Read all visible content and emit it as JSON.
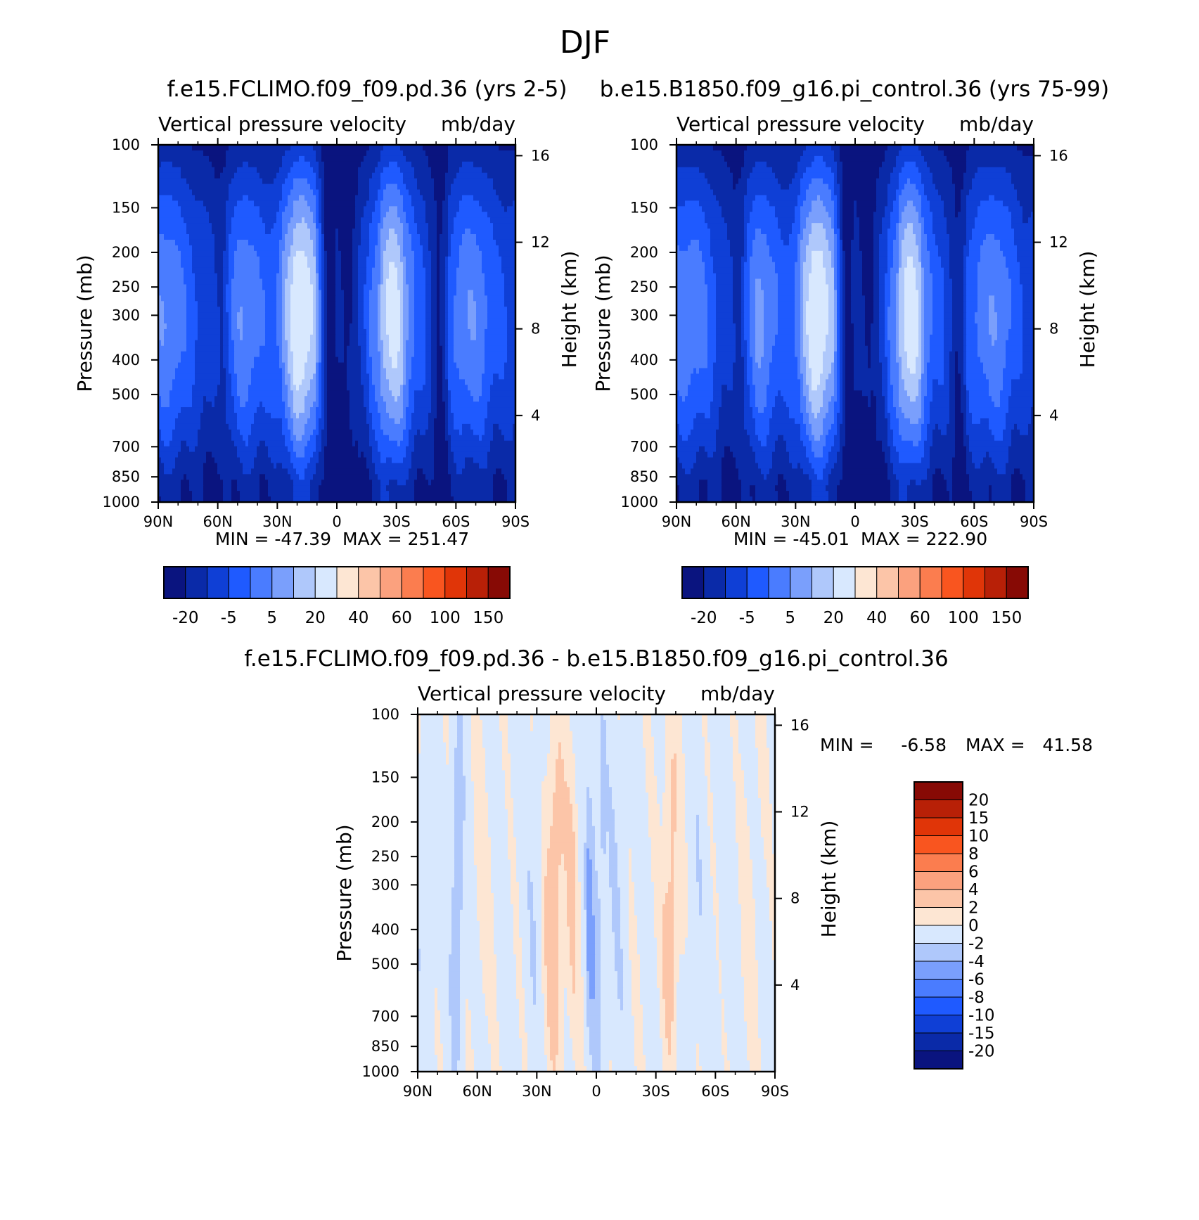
{
  "figure": {
    "title": "DJF"
  },
  "chart_data": [
    {
      "type": "heatmap",
      "title": "f.e15.FCLIMO.f09_f09.pd.36 (yrs 2-5)",
      "subtitle_left": "Vertical pressure velocity",
      "subtitle_right": "mb/day",
      "ylabel": "Pressure (mb)",
      "y2label": "Height (km)",
      "xticks": [
        "90N",
        "60N",
        "30N",
        "0",
        "30S",
        "60S",
        "90S"
      ],
      "xtick_values": [
        90,
        60,
        30,
        0,
        -30,
        -60,
        -90
      ],
      "xlim": [
        90,
        -90
      ],
      "yticks": [
        "100",
        "150",
        "200",
        "250",
        "300",
        "400",
        "500",
        "700",
        "850",
        "1000"
      ],
      "ytick_values": [
        100,
        150,
        200,
        250,
        300,
        400,
        500,
        700,
        850,
        1000
      ],
      "ylim": [
        1000,
        100
      ],
      "yscale": "log",
      "y2ticks": [
        "16",
        "12",
        "8",
        "4"
      ],
      "y2tick_values": [
        16,
        12,
        8,
        4
      ],
      "min_label": "MIN = -47.39",
      "max_label": "MAX = 251.47",
      "min": -47.39,
      "max": 251.47,
      "colorbar_labels": [
        "-20",
        "-5",
        "5",
        "20",
        "40",
        "60",
        "100",
        "150"
      ],
      "colorbar_orientation": "horizontal"
    },
    {
      "type": "heatmap",
      "title": "b.e15.B1850.f09_g16.pi_control.36 (yrs 75-99)",
      "subtitle_left": "Vertical pressure velocity",
      "subtitle_right": "mb/day",
      "ylabel": "Pressure (mb)",
      "y2label": "Height (km)",
      "xticks": [
        "90N",
        "60N",
        "30N",
        "0",
        "30S",
        "60S",
        "90S"
      ],
      "xtick_values": [
        90,
        60,
        30,
        0,
        -30,
        -60,
        -90
      ],
      "xlim": [
        90,
        -90
      ],
      "yticks": [
        "100",
        "150",
        "200",
        "250",
        "300",
        "400",
        "500",
        "700",
        "850",
        "1000"
      ],
      "ytick_values": [
        100,
        150,
        200,
        250,
        300,
        400,
        500,
        700,
        850,
        1000
      ],
      "ylim": [
        1000,
        100
      ],
      "yscale": "log",
      "y2ticks": [
        "16",
        "12",
        "8",
        "4"
      ],
      "y2tick_values": [
        16,
        12,
        8,
        4
      ],
      "min_label": "MIN = -45.01",
      "max_label": "MAX = 222.90",
      "min": -45.01,
      "max": 222.9,
      "colorbar_labels": [
        "-20",
        "-5",
        "5",
        "20",
        "40",
        "60",
        "100",
        "150"
      ],
      "colorbar_orientation": "horizontal"
    },
    {
      "type": "heatmap",
      "title": "f.e15.FCLIMO.f09_f09.pd.36 - b.e15.B1850.f09_g16.pi_control.36",
      "subtitle_left": "Vertical pressure velocity",
      "subtitle_right": "mb/day",
      "ylabel": "Pressure (mb)",
      "y2label": "Height (km)",
      "xticks": [
        "90N",
        "60N",
        "30N",
        "0",
        "30S",
        "60S",
        "90S"
      ],
      "xtick_values": [
        90,
        60,
        30,
        0,
        -30,
        -60,
        -90
      ],
      "xlim": [
        90,
        -90
      ],
      "yticks": [
        "100",
        "150",
        "200",
        "250",
        "300",
        "400",
        "500",
        "700",
        "850",
        "1000"
      ],
      "ytick_values": [
        100,
        150,
        200,
        250,
        300,
        400,
        500,
        700,
        850,
        1000
      ],
      "ylim": [
        1000,
        100
      ],
      "yscale": "log",
      "y2ticks": [
        "16",
        "12",
        "8",
        "4"
      ],
      "y2tick_values": [
        16,
        12,
        8,
        4
      ],
      "min_label": "MIN =",
      "min_value_label": "-6.58",
      "max_label": "MAX =",
      "max_value_label": "41.58",
      "min": -6.58,
      "max": 41.58,
      "colorbar_labels": [
        "20",
        "15",
        "10",
        "8",
        "6",
        "4",
        "2",
        "0",
        "-2",
        "-4",
        "-6",
        "-8",
        "-10",
        "-15",
        "-20"
      ],
      "colorbar_orientation": "vertical"
    }
  ],
  "palettes": {
    "full": [
      "#0a147f",
      "#0a2aa8",
      "#0f3fd6",
      "#1f5aff",
      "#4a7cff",
      "#7a9ffc",
      "#afc8fb",
      "#d8e8fe",
      "#fde6d3",
      "#fcc5a8",
      "#fba17e",
      "#fb7d4f",
      "#f9551f",
      "#e03508",
      "#b82007",
      "#870a05"
    ],
    "field_levels": [
      "#0a147f",
      "#0a2aa8",
      "#0f3fd6",
      "#1f5aff",
      "#4a7cff",
      "#7a9ffc",
      "#afc8fb",
      "#d8e8fe"
    ],
    "diff_levels": [
      "#d8e8fe",
      "#fde6d3",
      "#fcc5a8",
      "#fba17e",
      "#afc8fb"
    ]
  }
}
